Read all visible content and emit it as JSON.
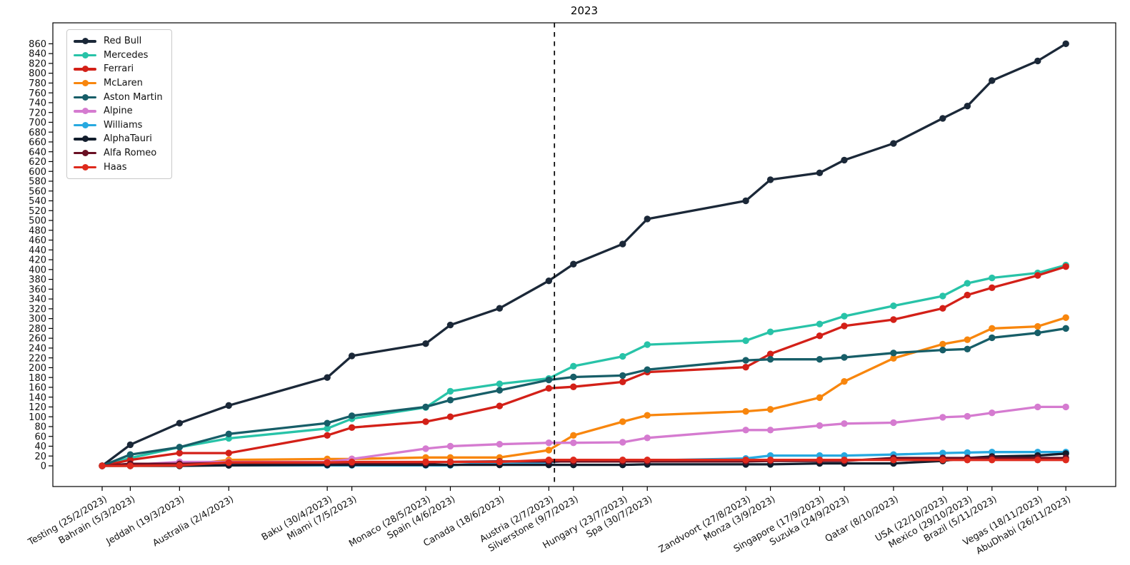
{
  "title": "2023",
  "y_axis": {
    "min": 0,
    "max": 860,
    "tick_step": 20
  },
  "dashed_line": {
    "day_offset": 128.6
  },
  "chart_data": {
    "type": "line",
    "title": "2023",
    "legend_position": "upper left",
    "grid": false,
    "ylim": [
      0,
      903
    ],
    "x_categories": [
      "Testing (25/2/2023)",
      "Bahrain (5/3/2023)",
      "Jeddah (19/3/2023)",
      "Australia (2/4/2023)",
      "Baku (30/4/2023)",
      "Miami (7/5/2023)",
      "Monaco (28/5/2023)",
      "Spain (4/6/2023)",
      "Canada (18/6/2023)",
      "Austria (2/7/2023)",
      "Silverstone (9/7/2023)",
      "Hungary (23/7/2023)",
      "Spa (30/7/2023)",
      "Zandvoort (27/8/2023)",
      "Monza (3/9/2023)",
      "Singapore (17/9/2023)",
      "Suzuka (24/9/2023)",
      "Qatar (8/10/2023)",
      "USA (22/10/2023)",
      "Mexico (29/10/2023)",
      "Brazil (5/11/2023)",
      "Vegas (18/11/2023)",
      "AbuDhabi (26/11/2023)"
    ],
    "day_offsets": [
      0,
      8,
      22,
      36,
      64,
      71,
      92,
      99,
      113,
      127,
      134,
      148,
      155,
      183,
      190,
      204,
      211,
      225,
      239,
      246,
      253,
      266,
      274
    ],
    "series": [
      {
        "name": "Red Bull",
        "color": "#1b2838",
        "values": [
          0,
          43,
          87,
          123,
          180,
          224,
          249,
          287,
          321,
          377,
          411,
          452,
          503,
          540,
          583,
          597,
          623,
          657,
          708,
          733,
          785,
          825,
          860
        ]
      },
      {
        "name": "Mercedes",
        "color": "#28c3a8",
        "values": [
          0,
          16,
          38,
          56,
          76,
          96,
          119,
          152,
          167,
          178,
          203,
          223,
          247,
          255,
          273,
          289,
          305,
          326,
          346,
          372,
          383,
          393,
          409
        ]
      },
      {
        "name": "Ferrari",
        "color": "#d32018",
        "values": [
          0,
          12,
          26,
          26,
          62,
          78,
          90,
          100,
          122,
          158,
          161,
          171,
          191,
          201,
          228,
          265,
          285,
          298,
          321,
          348,
          363,
          388,
          406
        ]
      },
      {
        "name": "McLaren",
        "color": "#f8860d",
        "values": [
          0,
          0,
          0,
          12,
          14,
          14,
          17,
          17,
          17,
          32,
          62,
          90,
          103,
          111,
          115,
          139,
          172,
          219,
          248,
          257,
          280,
          284,
          302
        ]
      },
      {
        "name": "Aston Martin",
        "color": "#175e68",
        "values": [
          0,
          23,
          38,
          65,
          87,
          102,
          120,
          134,
          154,
          175,
          181,
          184,
          196,
          215,
          217,
          217,
          221,
          230,
          236,
          238,
          261,
          271,
          280
        ]
      },
      {
        "name": "Alpine",
        "color": "#d57bd0",
        "values": [
          0,
          2,
          8,
          8,
          8,
          14,
          35,
          40,
          44,
          47,
          47,
          48,
          57,
          73,
          73,
          82,
          86,
          88,
          99,
          101,
          108,
          120,
          120
        ]
      },
      {
        "name": "Williams",
        "color": "#27a9e0",
        "values": [
          0,
          1,
          1,
          1,
          1,
          1,
          1,
          1,
          7,
          7,
          11,
          11,
          11,
          15,
          21,
          21,
          21,
          23,
          26,
          27,
          28,
          28,
          28
        ]
      },
      {
        "name": "AlphaTauri",
        "color": "#121d2c",
        "values": [
          0,
          0,
          0,
          1,
          2,
          2,
          2,
          2,
          2,
          2,
          2,
          2,
          3,
          3,
          3,
          5,
          5,
          5,
          10,
          16,
          19,
          21,
          25
        ]
      },
      {
        "name": "Alfa Romeo",
        "color": "#690f23",
        "values": [
          0,
          4,
          4,
          6,
          6,
          6,
          6,
          8,
          9,
          9,
          9,
          9,
          9,
          9,
          10,
          10,
          10,
          16,
          16,
          16,
          16,
          16,
          16
        ]
      },
      {
        "name": "Haas",
        "color": "#de2a1d",
        "values": [
          0,
          0,
          1,
          7,
          7,
          8,
          8,
          8,
          8,
          12,
          12,
          12,
          12,
          12,
          12,
          12,
          12,
          12,
          12,
          12,
          12,
          12,
          12
        ]
      }
    ]
  }
}
